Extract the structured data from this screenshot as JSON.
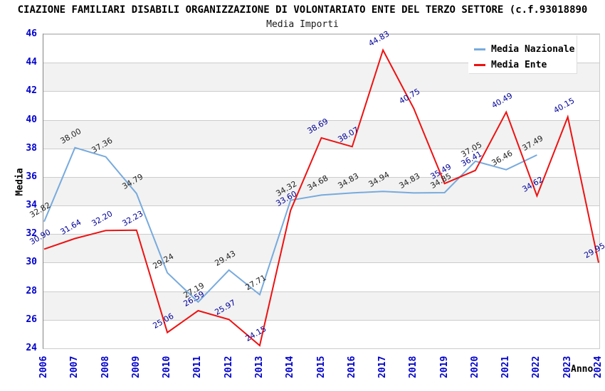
{
  "header": {
    "title": "CIAZIONE FAMILIARI DISABILI ORGANIZZAZIONE DI VOLONTARIATO ENTE DEL TERZO SETTORE (c.f.93018890",
    "subtitle": "Media Importi"
  },
  "chart_data": {
    "type": "line",
    "title": "Media Importi",
    "xlabel": "Anno",
    "ylabel": "Media",
    "ylim": [
      24,
      46
    ],
    "ytick_step": 2,
    "grid": "horizontal gridlines with alternating gray bands",
    "legend_position": "top-right",
    "categories": [
      "2006",
      "2007",
      "2008",
      "2009",
      "2010",
      "2011",
      "2012",
      "2013",
      "2014",
      "2015",
      "2016",
      "2017",
      "2018",
      "2019",
      "2020",
      "2021",
      "2022",
      "2023",
      "2024"
    ],
    "series": [
      {
        "name": "Media Nazionale",
        "color": "#77aadd",
        "label_color": "#222222",
        "values": [
          32.82,
          38.0,
          37.36,
          34.79,
          29.24,
          27.19,
          29.43,
          27.71,
          34.32,
          34.68,
          34.83,
          34.94,
          34.83,
          34.85,
          37.05,
          36.46,
          37.49,
          null,
          null
        ],
        "labels": [
          "32.82",
          "38.00",
          "37.36",
          "34.79",
          "29.24",
          "27.19",
          "29.43",
          "27.71",
          "34.32",
          "34.68",
          "34.83",
          "34.94",
          "34.83",
          "34.85",
          "37.05",
          "36.46",
          "37.49",
          null,
          null
        ]
      },
      {
        "name": "Media Ente",
        "color": "#ee1111",
        "label_color": "#000099",
        "values": [
          30.9,
          31.64,
          32.2,
          32.23,
          25.06,
          26.59,
          25.97,
          24.15,
          33.6,
          38.69,
          38.07,
          44.83,
          40.75,
          35.49,
          36.41,
          40.49,
          34.62,
          40.15,
          29.95
        ],
        "labels": [
          "30.90",
          "31.64",
          "32.20",
          "32.23",
          "25.06",
          "26.59",
          "25.97",
          "24.15",
          "33.60",
          "38.69",
          "38.07",
          "44.83",
          "40.75",
          "35.49",
          "36.41",
          "40.49",
          "34.62",
          "40.15",
          "29.95"
        ]
      }
    ]
  },
  "colors": {
    "tick_label": "#0000cc",
    "gridline": "#cccccc",
    "band": "#f2f2f2",
    "y_axis_line": "#848484",
    "background": "#ffffff"
  }
}
